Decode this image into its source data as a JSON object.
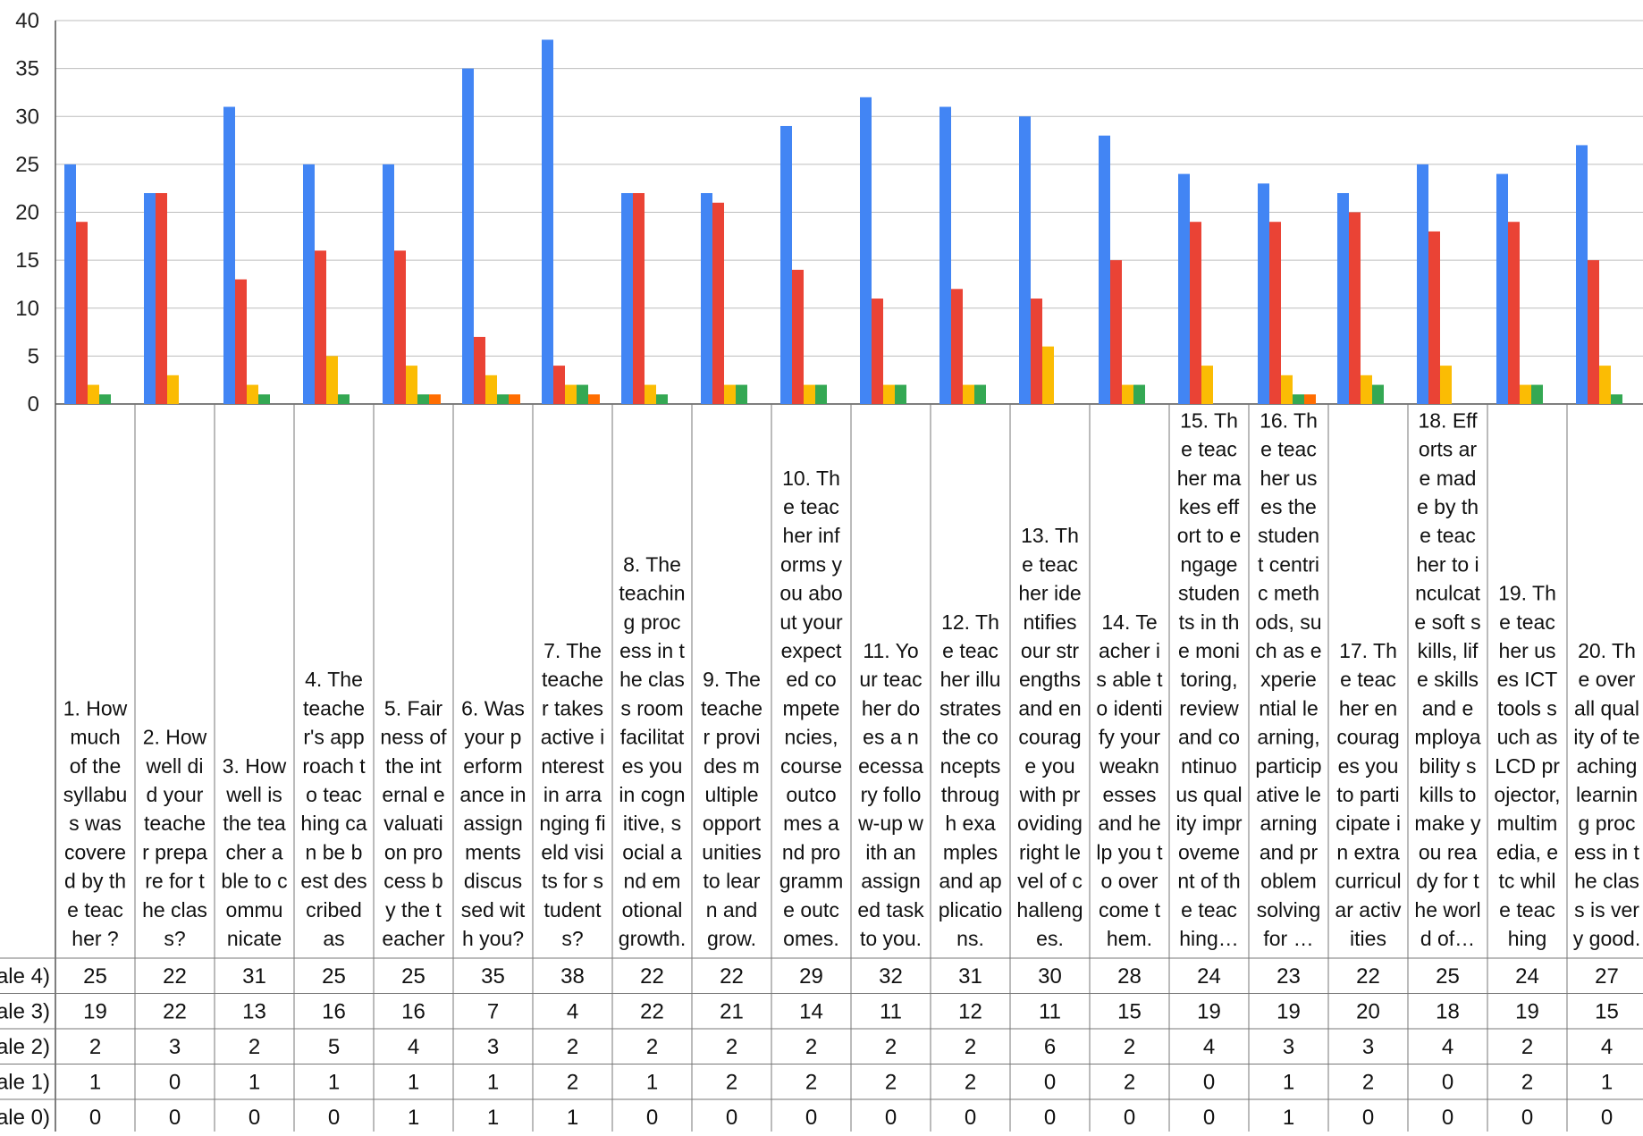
{
  "chart_data": {
    "type": "bar",
    "ylim": [
      0,
      40
    ],
    "yticks": [
      0,
      5,
      10,
      15,
      20,
      25,
      30,
      35,
      40
    ],
    "grid": true,
    "legend": "table-below",
    "categories": [
      "1. How much of the syllabus was covered by the teacher ?",
      "2. How well did your teacher prepare for the class?",
      "3. How well is the teacher able to communicate",
      "4. The teacher's approach to teaching can be best described as",
      "5. Fairness of the internal evaluation process by the teacher",
      "6. Was your performance in assignments discussed with you?",
      "7. The teacher takes active interest in arranging field visits for students?",
      "8. The teaching process in the class room facilitates you in cognitive, social and emotional growth.",
      "9. The teacher provides multiple opportunities to learn and grow.",
      "10. The teacher informs you about your expected competencies, course outcomes and programme outcomes.",
      "11. Your teacher does a necessary follow-up with an assigned task to you.",
      "12. The teacher illustrates the concepts through examples and applications.",
      "13. The teacher identifies our strengths and encourage you with providing right level of challenges.",
      "14. Teacher is able to identify your weaknesses and help you to overcome them.",
      "15. The teacher makes effort to engage students in the monitoring, review and continuous quality improvement of the teaching…",
      "16. The teacher uses the student centric methods, such as experiential learning, participative learning and problem solving for …",
      "17. The teacher encourages you to participate in extracurricular activities",
      "18. Efforts are made by the teacher to inculcate soft skills, life skills and employability skills to make you ready for the world of…",
      "19. The teacher uses ICT tools such as LCD projector, multimedia, etc while teaching",
      "20. The overall quality of teaching learning process in the class is very good."
    ],
    "category_lines": [
      [
        "1. How",
        "much",
        "of the",
        "syllabu",
        "s was",
        "covere",
        "d by th",
        "e teac",
        "her ?"
      ],
      [
        "2. How",
        "well di",
        "d your",
        "teache",
        "r prepa",
        "re for t",
        "he clas",
        "s?"
      ],
      [
        "3. How",
        "well is",
        "the tea",
        "cher a",
        "ble to c",
        "ommu",
        "nicate"
      ],
      [
        "4. The",
        "teache",
        "r's app",
        "roach t",
        "o teac",
        "hing ca",
        "n be b",
        "est des",
        "cribed",
        "as"
      ],
      [
        "5. Fair",
        "ness of",
        "the int",
        "ernal e",
        "valuati",
        "on pro",
        "cess b",
        "y the t",
        "eacher"
      ],
      [
        "6. Was",
        "your p",
        "erform",
        "ance in",
        "assign",
        "ments",
        "discus",
        "sed wit",
        "h you?"
      ],
      [
        "7. The",
        "teache",
        "r takes",
        "active i",
        "nterest",
        "in arra",
        "nging fi",
        "eld visi",
        "ts for s",
        "tudent",
        "s?"
      ],
      [
        "8. The",
        "teachin",
        "g proc",
        "ess in t",
        "he clas",
        "s room",
        "facilitat",
        "es you",
        "in cogn",
        "itive, s",
        "ocial a",
        "nd em",
        "otional",
        "growth."
      ],
      [
        "9. The",
        "teache",
        "r provi",
        "des m",
        "ultiple",
        "opport",
        "unities",
        "to lear",
        "n and",
        "grow."
      ],
      [
        "10. Th",
        "e teac",
        "her inf",
        "orms y",
        "ou abo",
        "ut your",
        "expect",
        "ed co",
        "mpete",
        "ncies,",
        "course",
        "outco",
        "mes a",
        "nd pro",
        "gramm",
        "e outc",
        "omes."
      ],
      [
        "11. Yo",
        "ur teac",
        "her do",
        "es a n",
        "ecessa",
        "ry follo",
        "w-up w",
        "ith an",
        "assign",
        "ed task",
        "to you."
      ],
      [
        "12. Th",
        "e teac",
        "her illu",
        "strates",
        "the co",
        "ncepts",
        "throug",
        "h exa",
        "mples",
        "and ap",
        "plicatio",
        "ns."
      ],
      [
        "13. Th",
        "e teac",
        "her ide",
        "ntifies",
        "our str",
        "engths",
        "and en",
        "courag",
        "e you",
        "with pr",
        "oviding",
        "right le",
        "vel of c",
        "halleng",
        "es."
      ],
      [
        "14. Te",
        "acher i",
        "s able t",
        "o identi",
        "fy your",
        "weakn",
        "esses",
        "and he",
        "lp you t",
        "o over",
        "come t",
        "hem."
      ],
      [
        "15. Th",
        "e teac",
        "her ma",
        "kes eff",
        "ort to e",
        "ngage",
        "studen",
        "ts in th",
        "e moni",
        "toring,",
        "review",
        "and co",
        "ntinuo",
        "us qual",
        "ity impr",
        "oveme",
        "nt of th",
        "e teac",
        "hing…"
      ],
      [
        "16. Th",
        "e teac",
        "her us",
        "es the",
        "studen",
        "t centri",
        "c meth",
        "ods, su",
        "ch as e",
        "xperie",
        "ntial le",
        "arning,",
        "particip",
        "ative le",
        "arning",
        "and pr",
        "oblem",
        "solving",
        "for …"
      ],
      [
        "17. Th",
        "e teac",
        "her en",
        "courag",
        "es you",
        "to parti",
        "cipate i",
        "n extra",
        "curricul",
        "ar activ",
        "ities"
      ],
      [
        "18. Eff",
        "orts ar",
        "e mad",
        "e by th",
        "e teac",
        "her to i",
        "nculcat",
        "e soft s",
        "kills, lif",
        "e skills",
        "and e",
        "mploya",
        "bility s",
        "kills to",
        "make y",
        "ou rea",
        "dy for t",
        "he worl",
        "d of…"
      ],
      [
        "19. Th",
        "e teac",
        "her us",
        "es ICT",
        "tools s",
        "uch as",
        "LCD pr",
        "ojector,",
        "multim",
        "edia, e",
        "tc whil",
        "e teac",
        "hing"
      ],
      [
        "20. Th",
        "e over",
        "all qual",
        "ity of te",
        "aching",
        "learnin",
        "g proc",
        "ess in t",
        "he clas",
        "s is ver",
        "y good."
      ]
    ],
    "series": [
      {
        "name": "ale 4)",
        "color": "#4285f4",
        "values": [
          25,
          22,
          31,
          25,
          25,
          35,
          38,
          22,
          22,
          29,
          32,
          31,
          30,
          28,
          24,
          23,
          22,
          25,
          24,
          27
        ]
      },
      {
        "name": "ale 3)",
        "color": "#ea4335",
        "values": [
          19,
          22,
          13,
          16,
          16,
          7,
          4,
          22,
          21,
          14,
          11,
          12,
          11,
          15,
          19,
          19,
          20,
          18,
          19,
          15
        ]
      },
      {
        "name": "ale 2)",
        "color": "#fbbc04",
        "values": [
          2,
          3,
          2,
          5,
          4,
          3,
          2,
          2,
          2,
          2,
          2,
          2,
          6,
          2,
          4,
          3,
          3,
          4,
          2,
          4
        ]
      },
      {
        "name": "ale 1)",
        "color": "#34a853",
        "values": [
          1,
          0,
          1,
          1,
          1,
          1,
          2,
          1,
          2,
          2,
          2,
          2,
          0,
          2,
          0,
          1,
          2,
          0,
          2,
          1
        ]
      },
      {
        "name": "ale 0)",
        "color": "#ff6d01",
        "values": [
          0,
          0,
          0,
          0,
          1,
          1,
          1,
          0,
          0,
          0,
          0,
          0,
          0,
          0,
          0,
          1,
          0,
          0,
          0,
          0
        ]
      }
    ]
  }
}
